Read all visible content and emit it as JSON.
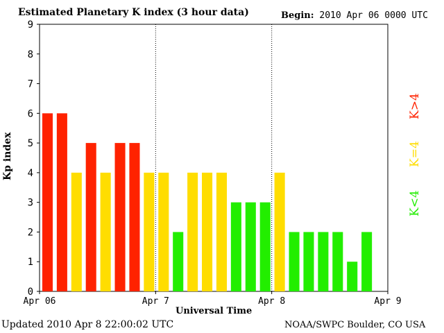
{
  "header": {
    "title": "Estimated Planetary K index (3 hour data)",
    "begin_label": "Begin:",
    "begin_value": "2010 Apr 06 0000 UTC"
  },
  "footer": {
    "updated": "Updated 2010 Apr  8 22:00:02 UTC",
    "source": "NOAA/SWPC Boulder, CO USA"
  },
  "legend": {
    "high": "K>4",
    "mid": "K=4",
    "low": "K<4"
  },
  "colors": {
    "high": "#ff2200",
    "mid": "#ffdd00",
    "low": "#22ee00"
  },
  "chart_data": {
    "type": "bar",
    "ylabel": "Kp index",
    "xlabel": "Universal Time",
    "ylim": [
      0,
      9
    ],
    "yticks": [
      "0",
      "1",
      "2",
      "3",
      "4",
      "5",
      "6",
      "7",
      "8",
      "9"
    ],
    "xticks": [
      "Apr 06",
      "Apr 7",
      "Apr 8",
      "Apr 9"
    ],
    "day_separators": [
      "Apr 7",
      "Apr 8"
    ],
    "slots_per_day": 8,
    "total_slots": 24,
    "values": [
      6,
      6,
      4,
      5,
      4,
      5,
      5,
      4,
      4,
      2,
      4,
      4,
      4,
      3,
      3,
      3,
      4,
      2,
      2,
      2,
      2,
      1,
      2
    ]
  }
}
